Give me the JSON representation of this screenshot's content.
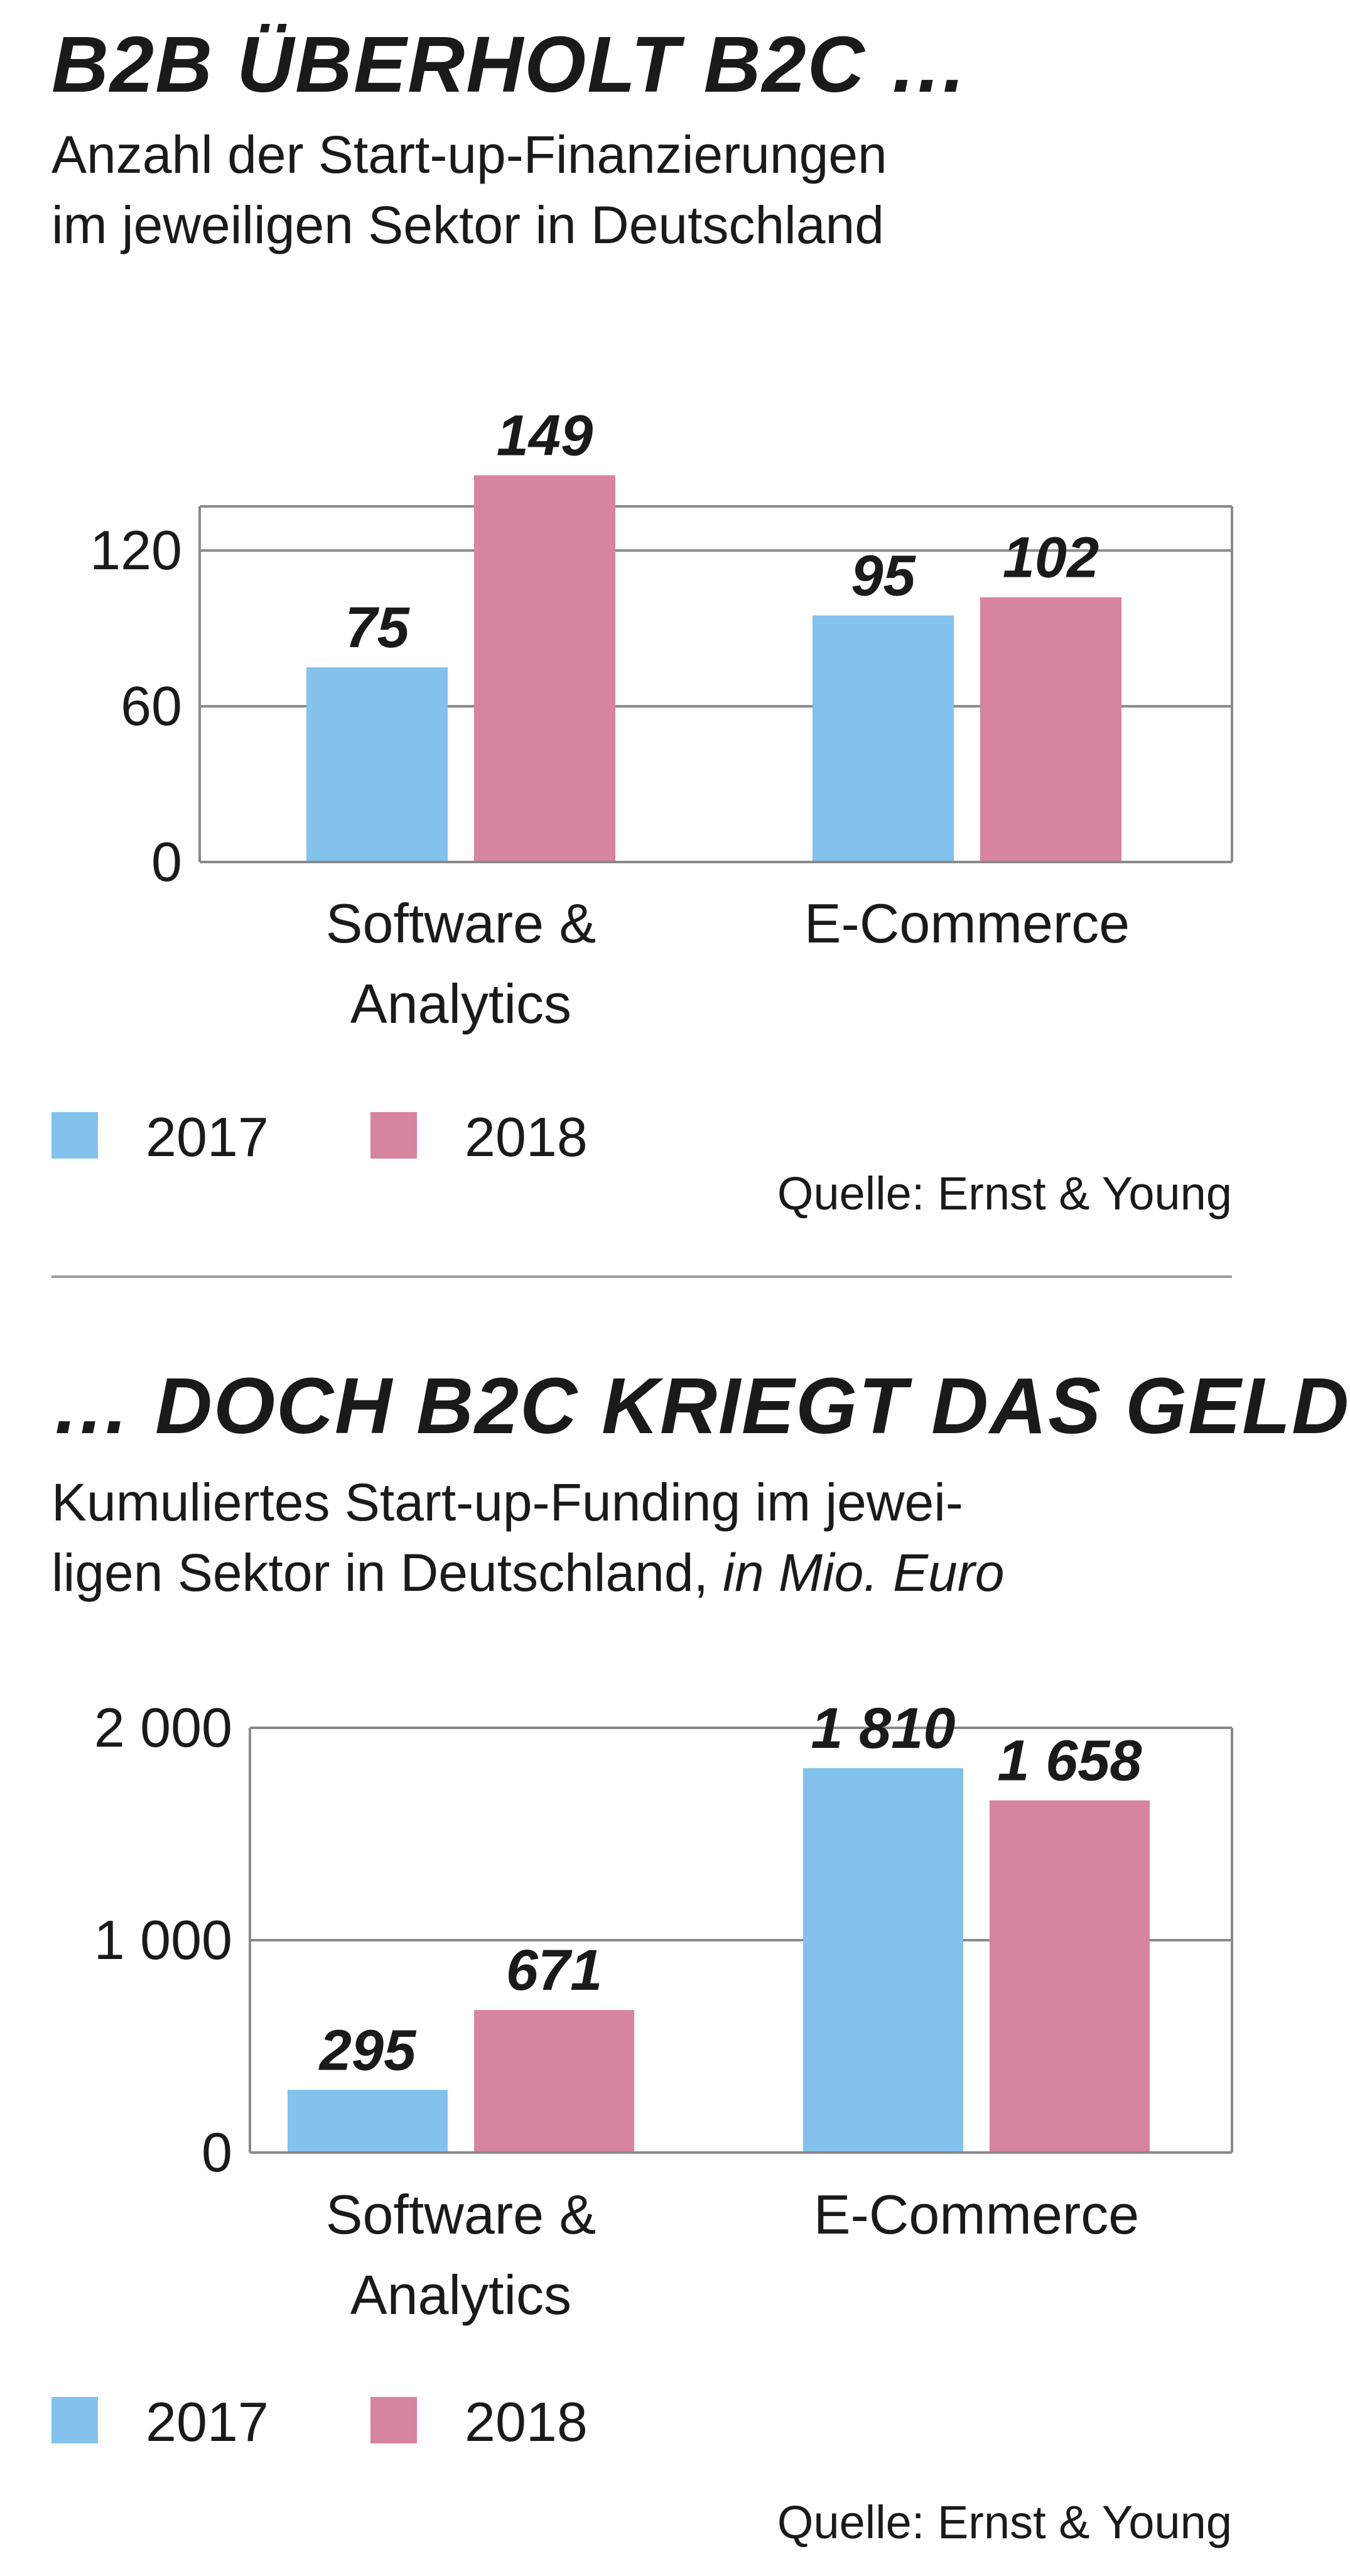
{
  "colors": {
    "2017": "#82c2ec",
    "2018": "#d7849f",
    "axis": "#8a8a8a",
    "text": "#1a1a1a"
  },
  "chart_data": [
    {
      "type": "bar",
      "title": "B2B ÜBERHOLT B2C …",
      "subtitle_lines": [
        "Anzahl der Start-up-Finanzierungen",
        "im jeweiligen Sektor in Deutschland"
      ],
      "subtitle_unit": "",
      "categories": [
        [
          "Software &",
          "Analytics"
        ],
        [
          "E-Commerce"
        ]
      ],
      "series": [
        {
          "name": "2017",
          "values": [
            75,
            95
          ]
        },
        {
          "name": "2018",
          "values": [
            149,
            102
          ]
        }
      ],
      "value_labels": [
        [
          "75",
          "95"
        ],
        [
          "149",
          "102"
        ]
      ],
      "yticks": [
        0,
        60,
        120
      ],
      "ytick_labels": [
        "0",
        "60",
        "120"
      ],
      "ylim": [
        0,
        137
      ],
      "grid": true,
      "legend": "bottom-left",
      "source": "Quelle: Ernst & Young"
    },
    {
      "type": "bar",
      "title": "… DOCH B2C KRIEGT DAS GELD",
      "subtitle_lines": [
        "Kumuliertes Start-up-Funding im jewei-",
        "ligen Sektor in Deutschland, "
      ],
      "subtitle_unit": "in Mio. Euro",
      "categories": [
        [
          "Software &",
          "Analytics"
        ],
        [
          "E-Commerce"
        ]
      ],
      "series": [
        {
          "name": "2017",
          "values": [
            295,
            1810
          ]
        },
        {
          "name": "2018",
          "values": [
            671,
            1658
          ]
        }
      ],
      "value_labels": [
        [
          "295",
          "1 810"
        ],
        [
          "671",
          "1 658"
        ]
      ],
      "yticks": [
        0,
        1000,
        2000
      ],
      "ytick_labels": [
        "0",
        "1 000",
        "2 000"
      ],
      "ylim": [
        0,
        2000
      ],
      "grid": true,
      "legend": "bottom-left",
      "source": "Quelle: Ernst & Young"
    }
  ]
}
